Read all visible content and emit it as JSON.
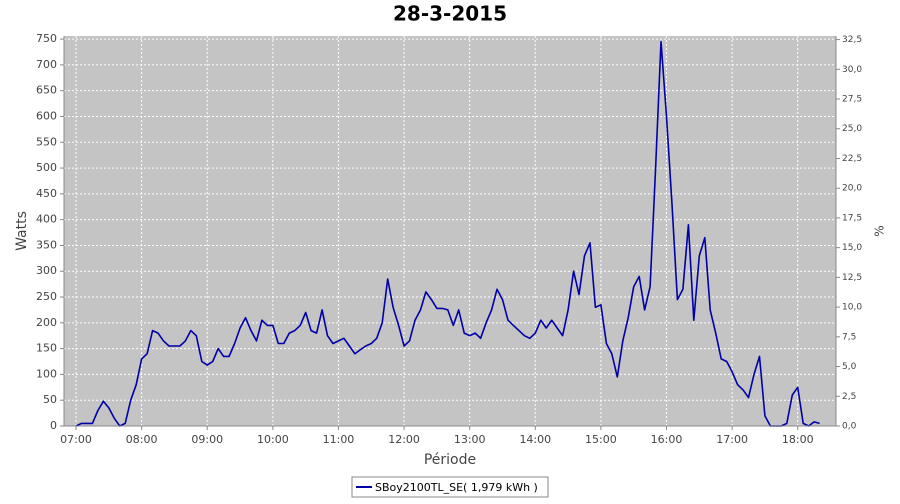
{
  "chart_data": {
    "type": "line",
    "title": "28-3-2015",
    "x_label": "Période",
    "y_label": "Watts",
    "y2_label": "%",
    "x": [
      "07:00",
      "07:05",
      "07:10",
      "07:15",
      "07:20",
      "07:25",
      "07:30",
      "07:35",
      "07:40",
      "07:45",
      "07:50",
      "07:55",
      "08:00",
      "08:05",
      "08:10",
      "08:15",
      "08:20",
      "08:25",
      "08:30",
      "08:35",
      "08:40",
      "08:45",
      "08:50",
      "08:55",
      "09:00",
      "09:05",
      "09:10",
      "09:15",
      "09:20",
      "09:25",
      "09:30",
      "09:35",
      "09:40",
      "09:45",
      "09:50",
      "09:55",
      "10:00",
      "10:05",
      "10:10",
      "10:15",
      "10:20",
      "10:25",
      "10:30",
      "10:35",
      "10:40",
      "10:45",
      "10:50",
      "10:55",
      "11:00",
      "11:05",
      "11:10",
      "11:15",
      "11:20",
      "11:25",
      "11:30",
      "11:35",
      "11:40",
      "11:45",
      "11:50",
      "11:55",
      "12:00",
      "12:05",
      "12:10",
      "12:15",
      "12:20",
      "12:25",
      "12:30",
      "12:35",
      "12:40",
      "12:45",
      "12:50",
      "12:55",
      "13:00",
      "13:05",
      "13:10",
      "13:15",
      "13:20",
      "13:25",
      "13:30",
      "13:35",
      "13:40",
      "13:45",
      "13:50",
      "13:55",
      "14:00",
      "14:05",
      "14:10",
      "14:15",
      "14:20",
      "14:25",
      "14:30",
      "14:35",
      "14:40",
      "14:45",
      "14:50",
      "14:55",
      "15:00",
      "15:05",
      "15:10",
      "15:15",
      "15:20",
      "15:25",
      "15:30",
      "15:35",
      "15:40",
      "15:45",
      "15:50",
      "15:55",
      "16:00",
      "16:05",
      "16:10",
      "16:15",
      "16:20",
      "16:25",
      "16:30",
      "16:35",
      "16:40",
      "16:45",
      "16:50",
      "16:55",
      "17:00",
      "17:05",
      "17:10",
      "17:15",
      "17:20",
      "17:25",
      "17:30",
      "17:35",
      "17:40",
      "17:45",
      "17:50",
      "17:55",
      "18:00",
      "18:05",
      "18:10",
      "18:15",
      "18:20"
    ],
    "series": [
      {
        "name": "SBoy2100TL_SE( 1,979 kWh )",
        "color": "#0000aa",
        "values": [
          0,
          5,
          5,
          5,
          30,
          48,
          35,
          15,
          0,
          5,
          50,
          80,
          130,
          140,
          185,
          180,
          165,
          155,
          155,
          155,
          165,
          185,
          175,
          125,
          118,
          125,
          150,
          135,
          135,
          160,
          190,
          210,
          185,
          165,
          205,
          195,
          195,
          160,
          160,
          180,
          185,
          195,
          220,
          185,
          180,
          225,
          175,
          160,
          165,
          170,
          155,
          140,
          148,
          155,
          160,
          170,
          200,
          285,
          230,
          195,
          155,
          165,
          205,
          225,
          260,
          245,
          228,
          228,
          225,
          195,
          225,
          180,
          175,
          180,
          170,
          200,
          225,
          265,
          245,
          205,
          195,
          185,
          175,
          170,
          180,
          205,
          190,
          205,
          190,
          175,
          225,
          300,
          255,
          330,
          355,
          230,
          235,
          160,
          140,
          95,
          165,
          210,
          270,
          290,
          225,
          270,
          500,
          745,
          600,
          430,
          245,
          265,
          390,
          205,
          330,
          365,
          225,
          180,
          130,
          125,
          105,
          80,
          70,
          55,
          100,
          135,
          20,
          0,
          0,
          0,
          5,
          60,
          75,
          5,
          0,
          8,
          5
        ]
      }
    ],
    "xlim": [
      "06:49",
      "18:35"
    ],
    "xticks": [
      "07:00",
      "08:00",
      "09:00",
      "10:00",
      "11:00",
      "12:00",
      "13:00",
      "14:00",
      "15:00",
      "16:00",
      "17:00",
      "18:00"
    ],
    "ylim": [
      0,
      756
    ],
    "yticks": [
      0,
      50,
      100,
      150,
      200,
      250,
      300,
      350,
      400,
      450,
      500,
      550,
      600,
      650,
      700,
      750
    ],
    "y2lim": [
      0,
      32.8
    ],
    "y2ticks": [
      {
        "value": 0,
        "label": "0,0"
      },
      {
        "value": 2.5,
        "label": "2,5"
      },
      {
        "value": 5,
        "label": "5,0"
      },
      {
        "value": 7.5,
        "label": "7,5"
      },
      {
        "value": 10,
        "label": "10,0"
      },
      {
        "value": 12.5,
        "label": "12,5"
      },
      {
        "value": 15,
        "label": "15,0"
      },
      {
        "value": 17.5,
        "label": "17,5"
      },
      {
        "value": 20,
        "label": "20,0"
      },
      {
        "value": 22.5,
        "label": "22,5"
      },
      {
        "value": 25,
        "label": "25,0"
      },
      {
        "value": 27.5,
        "label": "27,5"
      },
      {
        "value": 30,
        "label": "30,0"
      },
      {
        "value": 32.5,
        "label": "32,5"
      }
    ],
    "grid": true,
    "legend": "bottom"
  }
}
